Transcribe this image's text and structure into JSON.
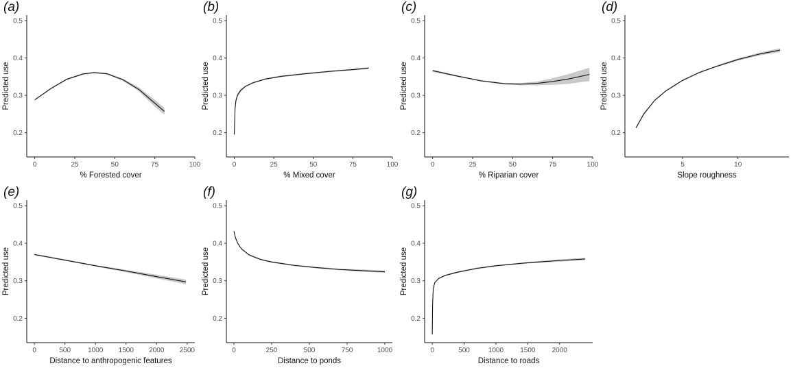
{
  "figure": {
    "panels_count": 7
  },
  "chart_data": [
    {
      "panel": "(a)",
      "type": "line",
      "xlabel": "% Forested cover",
      "ylabel": "Predicted use",
      "xlim": [
        -5,
        100
      ],
      "ylim": [
        0.135,
        0.515
      ],
      "xticks": [
        0,
        25,
        50,
        75,
        100
      ],
      "yticks": [
        0.2,
        0.3,
        0.4,
        0.5
      ],
      "x": [
        0,
        10,
        20,
        30,
        37,
        45,
        55,
        65,
        75,
        81
      ],
      "y": [
        0.288,
        0.318,
        0.343,
        0.357,
        0.361,
        0.358,
        0.342,
        0.316,
        0.279,
        0.257
      ],
      "lower": [
        0.286,
        0.316,
        0.341,
        0.355,
        0.359,
        0.356,
        0.339,
        0.311,
        0.27,
        0.248
      ],
      "upper": [
        0.29,
        0.32,
        0.345,
        0.359,
        0.363,
        0.36,
        0.345,
        0.321,
        0.288,
        0.266
      ]
    },
    {
      "panel": "(b)",
      "type": "line",
      "xlabel": "% Mixed cover",
      "ylabel": "Predicted use",
      "xlim": [
        -5,
        100
      ],
      "ylim": [
        0.135,
        0.515
      ],
      "xticks": [
        0,
        25,
        50,
        75,
        100
      ],
      "yticks": [
        0.2,
        0.3,
        0.4,
        0.5
      ],
      "x": [
        0,
        0.5,
        1,
        2,
        4,
        7,
        12,
        20,
        30,
        45,
        60,
        75,
        85
      ],
      "y": [
        0.195,
        0.265,
        0.285,
        0.3,
        0.313,
        0.324,
        0.334,
        0.344,
        0.351,
        0.358,
        0.364,
        0.369,
        0.373
      ],
      "lower": [
        0.18,
        0.255,
        0.278,
        0.295,
        0.31,
        0.322,
        0.332,
        0.342,
        0.349,
        0.356,
        0.362,
        0.367,
        0.37
      ],
      "upper": [
        0.21,
        0.275,
        0.292,
        0.305,
        0.316,
        0.326,
        0.336,
        0.346,
        0.353,
        0.36,
        0.366,
        0.371,
        0.376
      ]
    },
    {
      "panel": "(c)",
      "type": "line",
      "xlabel": "% Riparian cover",
      "ylabel": "Predicted use",
      "xlim": [
        -5,
        100
      ],
      "ylim": [
        0.135,
        0.515
      ],
      "xticks": [
        0,
        25,
        50,
        75,
        100
      ],
      "yticks": [
        0.2,
        0.3,
        0.4,
        0.5
      ],
      "x": [
        0,
        15,
        30,
        45,
        55,
        65,
        75,
        85,
        98
      ],
      "y": [
        0.366,
        0.352,
        0.339,
        0.331,
        0.33,
        0.332,
        0.337,
        0.344,
        0.356
      ],
      "lower": [
        0.363,
        0.35,
        0.337,
        0.329,
        0.327,
        0.327,
        0.328,
        0.331,
        0.338
      ],
      "upper": [
        0.369,
        0.354,
        0.341,
        0.333,
        0.333,
        0.337,
        0.346,
        0.357,
        0.374
      ]
    },
    {
      "panel": "(d)",
      "type": "line",
      "xlabel": "Slope roughness",
      "ylabel": "Predicted use",
      "xlim": [
        -0.2,
        14.6
      ],
      "ylim": [
        0.135,
        0.515
      ],
      "xticks": [
        5,
        10
      ],
      "yticks": [
        0.2,
        0.3,
        0.4,
        0.5
      ],
      "x": [
        0.8,
        1.5,
        2.5,
        3.5,
        5,
        6.5,
        8,
        10,
        12,
        13.8
      ],
      "y": [
        0.213,
        0.25,
        0.287,
        0.312,
        0.34,
        0.361,
        0.377,
        0.396,
        0.411,
        0.421
      ],
      "lower": [
        0.21,
        0.247,
        0.285,
        0.31,
        0.338,
        0.359,
        0.375,
        0.393,
        0.407,
        0.416
      ],
      "upper": [
        0.216,
        0.253,
        0.289,
        0.314,
        0.342,
        0.363,
        0.379,
        0.399,
        0.415,
        0.426
      ]
    },
    {
      "panel": "(e)",
      "type": "line",
      "xlabel": "Distance to anthropogenic features",
      "ylabel": "Predicted use",
      "xlim": [
        -125,
        2625
      ],
      "ylim": [
        0.135,
        0.515
      ],
      "xticks": [
        0,
        500,
        1000,
        1500,
        2000,
        2500
      ],
      "yticks": [
        0.2,
        0.3,
        0.4,
        0.5
      ],
      "x": [
        0,
        500,
        1000,
        1500,
        2000,
        2480
      ],
      "y": [
        0.37,
        0.355,
        0.34,
        0.326,
        0.311,
        0.297
      ],
      "lower": [
        0.368,
        0.353,
        0.338,
        0.323,
        0.306,
        0.291
      ],
      "upper": [
        0.372,
        0.357,
        0.342,
        0.329,
        0.316,
        0.303
      ]
    },
    {
      "panel": "(f)",
      "type": "line",
      "xlabel": "Distance to ponds",
      "ylabel": "Predicted use",
      "xlim": [
        -50,
        1050
      ],
      "ylim": [
        0.135,
        0.515
      ],
      "xticks": [
        0,
        250,
        500,
        750,
        1000
      ],
      "yticks": [
        0.2,
        0.3,
        0.4,
        0.5
      ],
      "x": [
        0,
        10,
        25,
        50,
        100,
        175,
        250,
        400,
        550,
        700,
        850,
        1000
      ],
      "y": [
        0.432,
        0.415,
        0.4,
        0.385,
        0.369,
        0.357,
        0.35,
        0.341,
        0.335,
        0.33,
        0.327,
        0.324
      ],
      "lower": [
        0.428,
        0.412,
        0.398,
        0.383,
        0.367,
        0.355,
        0.348,
        0.339,
        0.333,
        0.328,
        0.324,
        0.321
      ],
      "upper": [
        0.436,
        0.418,
        0.402,
        0.387,
        0.371,
        0.359,
        0.352,
        0.343,
        0.337,
        0.332,
        0.33,
        0.327
      ]
    },
    {
      "panel": "(g)",
      "type": "line",
      "xlabel": "Distance to roads",
      "ylabel": "Predicted use",
      "xlim": [
        -120,
        2520
      ],
      "ylim": [
        0.135,
        0.515
      ],
      "xticks": [
        0,
        500,
        1000,
        1500,
        2000
      ],
      "yticks": [
        0.2,
        0.3,
        0.4,
        0.5
      ],
      "x": [
        0,
        5,
        15,
        40,
        100,
        200,
        400,
        700,
        1000,
        1500,
        2000,
        2400
      ],
      "y": [
        0.157,
        0.235,
        0.279,
        0.295,
        0.306,
        0.314,
        0.323,
        0.333,
        0.34,
        0.348,
        0.354,
        0.358
      ],
      "lower": [
        0.15,
        0.23,
        0.276,
        0.293,
        0.304,
        0.312,
        0.321,
        0.331,
        0.338,
        0.346,
        0.351,
        0.355
      ],
      "upper": [
        0.164,
        0.24,
        0.282,
        0.297,
        0.308,
        0.316,
        0.325,
        0.335,
        0.342,
        0.35,
        0.357,
        0.361
      ]
    }
  ]
}
